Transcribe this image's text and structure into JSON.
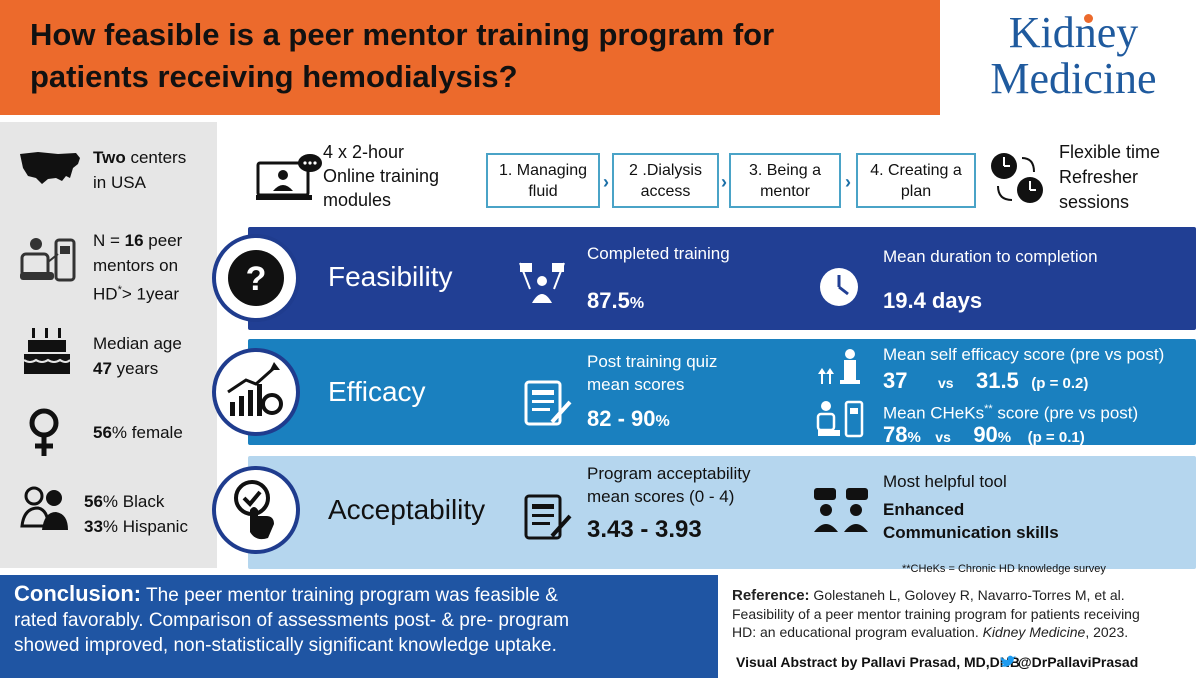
{
  "header": {
    "title_line1": "How feasible is a peer mentor training program for",
    "title_line2": "patients receiving hemodialysis?",
    "logo_line1": "Kidney",
    "logo_line2": "Medicine"
  },
  "sidebar": {
    "centers_bold": "Two",
    "centers_rest": "centers",
    "centers_line2": "in USA",
    "n_prefix": "N = ",
    "n_value": "16",
    "n_rest": " peer",
    "n_line2": "mentors on",
    "n_line3_a": "HD",
    "n_line3_sup": "*",
    "n_line3_b": "> 1year",
    "age_line1": "Median age",
    "age_value": "47",
    "age_unit": " years",
    "female_value": "56",
    "female_rest": "% female",
    "black_value": "56",
    "black_rest": "% Black",
    "hisp_value": "33",
    "hisp_rest": "% Hispanic"
  },
  "modules": {
    "intro_line1": "4 x 2-hour",
    "intro_line2": "Online training",
    "intro_line3": "modules",
    "items": [
      {
        "l1": "1. Managing",
        "l2": "fluid"
      },
      {
        "l1": "2 .Dialysis",
        "l2": "access"
      },
      {
        "l1": "3. Being a",
        "l2": "mentor"
      },
      {
        "l1": "4. Creating a",
        "l2": "plan"
      }
    ],
    "chevron": "›",
    "flex_line1": "Flexible time",
    "flex_line2": "Refresher",
    "flex_line3": "sessions"
  },
  "feasibility": {
    "title": "Feasibility",
    "completed_label": "Completed  training",
    "completed_value": "87.5",
    "completed_unit": "%",
    "duration_label": "Mean duration to completion",
    "duration_value": "19.4 days"
  },
  "efficacy": {
    "title": "Efficacy",
    "quiz_line1": "Post training quiz",
    "quiz_line2": "mean scores",
    "quiz_a": "82",
    "quiz_dash": " - ",
    "quiz_b": "90",
    "quiz_unit": "%",
    "se_label": "Mean self efficacy score (pre vs post)",
    "se_pre": "37",
    "se_vs": "vs",
    "se_post": "31.5",
    "se_p": "(p = 0.2)",
    "ch_label_a": "Mean CHeKs",
    "ch_label_sup": "**",
    "ch_label_b": " score (pre vs post)",
    "ch_pre": "78",
    "ch_pre_unit": "%",
    "ch_vs": "vs",
    "ch_post": "90",
    "ch_post_unit": "%",
    "ch_p": "(p = 0.1)"
  },
  "acceptability": {
    "title": "Acceptability",
    "acc_line1": "Program acceptability",
    "acc_line2": "mean scores (0 - 4)",
    "acc_value": "3.43 - 3.93",
    "tool_label": "Most helpful tool",
    "tool_line1": "Enhanced",
    "tool_line2": "Communication skills",
    "footnote": "**CHeKs = Chronic HD knowledge survey"
  },
  "conclusion": {
    "label": "Conclusion:",
    "text1": " The peer mentor training program was feasible &",
    "text2": "rated favorably. Comparison of assessments post- & pre- program",
    "text3": "showed improved, non-statistically significant knowledge uptake."
  },
  "reference": {
    "label": "Reference:",
    "line1": " Golestaneh L, Golovey R, Navarro-Torres M, et al.",
    "line2": "Feasibility of a peer mentor training program for patients receiving",
    "line3a": "HD: an educational program evaluation. ",
    "line3_journal": "Kidney Medicine",
    "line3b": ", 2023.",
    "credit": "Visual Abstract by Pallavi Prasad, MD,DNB",
    "twitter": "@DrPallaviPrasad"
  },
  "colors": {
    "orange": "#ec6a2c",
    "navy": "#213f94",
    "blue": "#1a80bf",
    "lightblue": "#b5d6ee",
    "brand": "#1f5a9e"
  }
}
